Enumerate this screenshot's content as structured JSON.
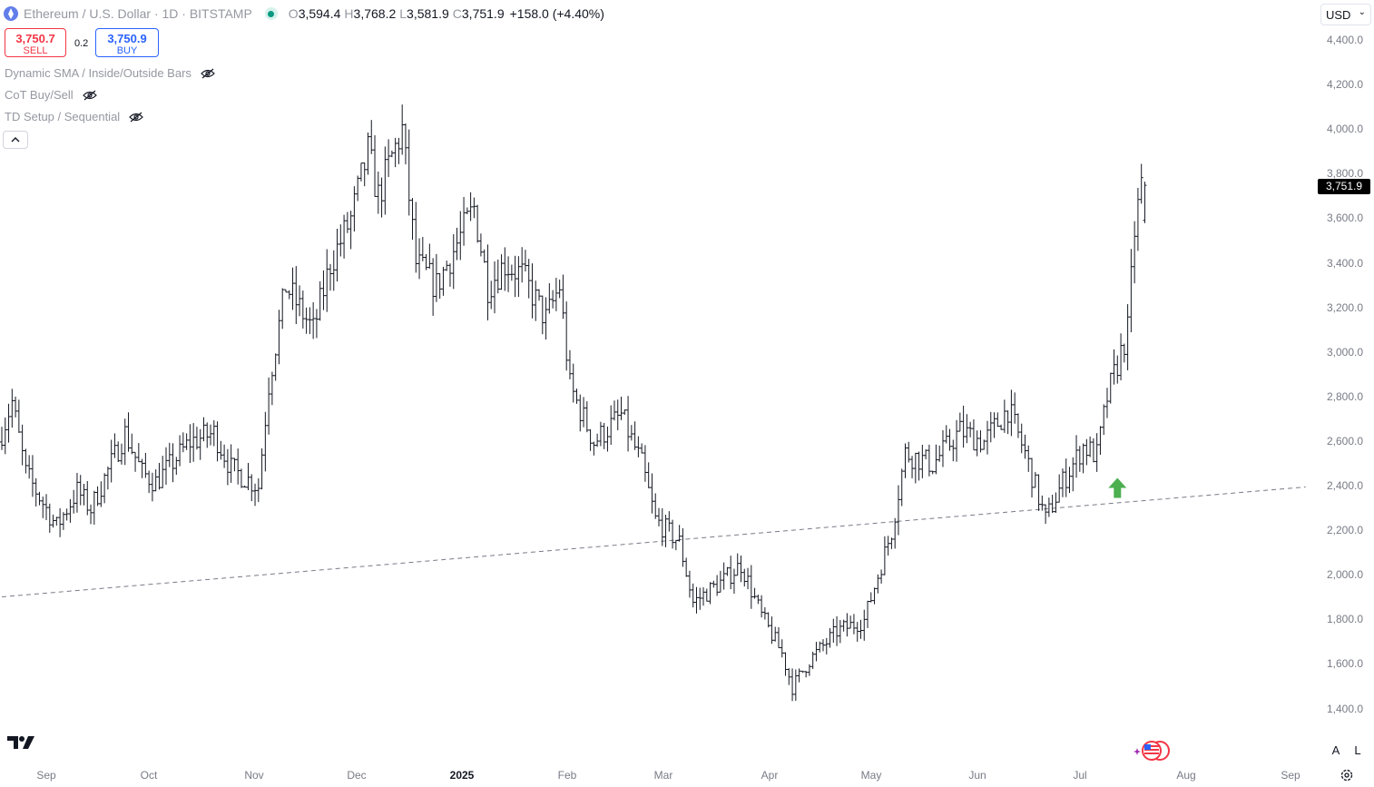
{
  "header": {
    "symbol_title": "Ethereum / U.S. Dollar · 1D · BITSTAMP",
    "ohlc": [
      {
        "label": "O",
        "value": "3,594.4"
      },
      {
        "label": "H",
        "value": "3,768.2"
      },
      {
        "label": "L",
        "value": "3,581.9"
      },
      {
        "label": "C",
        "value": "3,751.9"
      }
    ],
    "change": "+158.0 (+4.40%)",
    "market_status_color": "#089981",
    "symbol_icon": "ethereum-logo-icon"
  },
  "trade": {
    "sell_price": "3,750.7",
    "sell_label": "SELL",
    "spread": "0.2",
    "buy_price": "3,750.9",
    "buy_label": "BUY"
  },
  "indicators": [
    {
      "name": "Dynamic SMA / Inside/Outside Bars",
      "icon": "eye-hidden-icon"
    },
    {
      "name": "CoT Buy/Sell",
      "icon": "eye-hidden-icon"
    },
    {
      "name": "TD Setup / Sequential",
      "icon": "eye-hidden-icon"
    }
  ],
  "collapse_icon": "chevron-up-icon",
  "currency": "USD",
  "price_axis": [
    "4,400.0",
    "4,200.0",
    "4,000.0",
    "3,800.0",
    "3,600.0",
    "3,400.0",
    "3,200.0",
    "3,000.0",
    "2,800.0",
    "2,600.0",
    "2,400.0",
    "2,200.0",
    "2,000.0",
    "1,800.0",
    "1,600.0",
    "1,400.0"
  ],
  "last_price": "3,751.9",
  "time_axis": [
    {
      "label": "Sep",
      "year": false
    },
    {
      "label": "Oct",
      "year": false
    },
    {
      "label": "Nov",
      "year": false
    },
    {
      "label": "Dec",
      "year": false
    },
    {
      "label": "2025",
      "year": true
    },
    {
      "label": "Feb",
      "year": false
    },
    {
      "label": "Mar",
      "year": false
    },
    {
      "label": "Apr",
      "year": false
    },
    {
      "label": "May",
      "year": false
    },
    {
      "label": "Jun",
      "year": false
    },
    {
      "label": "Jul",
      "year": false
    },
    {
      "label": "Aug",
      "year": false
    },
    {
      "label": "Sep",
      "year": false
    }
  ],
  "controls": {
    "auto_label": "A",
    "log_label": "L",
    "settings_icon": "gear-icon"
  },
  "colors": {
    "bars": "#131722",
    "signal_arrow": "#4caf50",
    "trendline": "#787b86"
  },
  "chart_data": {
    "type": "ohlc-bar",
    "interval": "1D",
    "waypoints": [
      [
        "2024-08-20",
        2600
      ],
      [
        "2024-08-24",
        2780
      ],
      [
        "2024-08-28",
        2460
      ],
      [
        "2024-09-06",
        2220
      ],
      [
        "2024-09-12",
        2380
      ],
      [
        "2024-09-16",
        2300
      ],
      [
        "2024-09-26",
        2640
      ],
      [
        "2024-10-01",
        2460
      ],
      [
        "2024-10-05",
        2420
      ],
      [
        "2024-10-15",
        2600
      ],
      [
        "2024-10-22",
        2640
      ],
      [
        "2024-10-27",
        2480
      ],
      [
        "2024-11-04",
        2400
      ],
      [
        "2024-11-07",
        2860
      ],
      [
        "2024-11-12",
        3300
      ],
      [
        "2024-11-20",
        3100
      ],
      [
        "2024-11-25",
        3400
      ],
      [
        "2024-12-01",
        3600
      ],
      [
        "2024-12-06",
        3900
      ],
      [
        "2024-12-09",
        3700
      ],
      [
        "2024-12-13",
        3880
      ],
      [
        "2024-12-16",
        4000
      ],
      [
        "2024-12-20",
        3400
      ],
      [
        "2024-12-26",
        3300
      ],
      [
        "2025-01-06",
        3650
      ],
      [
        "2025-01-10",
        3300
      ],
      [
        "2025-01-15",
        3400
      ],
      [
        "2025-01-20",
        3350
      ],
      [
        "2025-01-27",
        3150
      ],
      [
        "2025-01-31",
        3300
      ],
      [
        "2025-02-03",
        2850
      ],
      [
        "2025-02-10",
        2600
      ],
      [
        "2025-02-18",
        2720
      ],
      [
        "2025-02-24",
        2500
      ],
      [
        "2025-02-28",
        2250
      ],
      [
        "2025-03-07",
        2150
      ],
      [
        "2025-03-11",
        1880
      ],
      [
        "2025-03-20",
        1980
      ],
      [
        "2025-03-25",
        2050
      ],
      [
        "2025-03-31",
        1820
      ],
      [
        "2025-04-06",
        1650
      ],
      [
        "2025-04-09",
        1500
      ],
      [
        "2025-04-14",
        1620
      ],
      [
        "2025-04-22",
        1750
      ],
      [
        "2025-04-30",
        1800
      ],
      [
        "2025-05-08",
        2200
      ],
      [
        "2025-05-12",
        2550
      ],
      [
        "2025-05-20",
        2500
      ],
      [
        "2025-05-28",
        2650
      ],
      [
        "2025-06-04",
        2600
      ],
      [
        "2025-06-11",
        2750
      ],
      [
        "2025-06-16",
        2550
      ],
      [
        "2025-06-22",
        2250
      ],
      [
        "2025-06-27",
        2420
      ],
      [
        "2025-07-03",
        2580
      ],
      [
        "2025-07-07",
        2540
      ],
      [
        "2025-07-10",
        2800
      ],
      [
        "2025-07-13",
        2950
      ],
      [
        "2025-07-16",
        3100
      ],
      [
        "2025-07-18",
        3550
      ],
      [
        "2025-07-20",
        3751.9
      ]
    ],
    "last_bar": {
      "date": "2025-07-20",
      "open": 3594.4,
      "high": 3768.2,
      "low": 3581.9,
      "close": 3751.9
    },
    "trendline": {
      "start": [
        "2024-08-20",
        1905
      ],
      "end": [
        "2025-09-05",
        2398
      ],
      "style": "dashed"
    },
    "signals": [
      {
        "date": "2025-07-12",
        "price": 2390,
        "type": "buy-arrow"
      }
    ],
    "y_range": [
      1310,
      4500
    ],
    "x_range": [
      "2024-08-20",
      "2025-09-08"
    ]
  }
}
